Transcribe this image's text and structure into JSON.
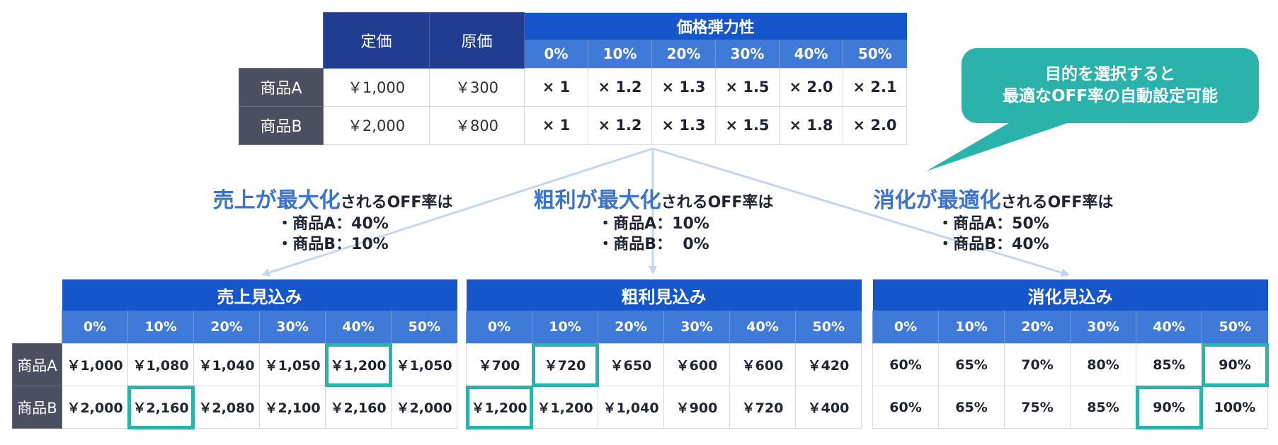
{
  "top_table": {
    "header_list_price": "定価",
    "header_cost": "原価",
    "header_elasticity": "価格弾力性",
    "discounts": [
      "0%",
      "10%",
      "20%",
      "30%",
      "40%",
      "50%"
    ],
    "rows": [
      {
        "label": "商品A",
        "list_price": "￥1,000",
        "cost": "￥300",
        "multipliers": [
          "× 1",
          "× 1.2",
          "× 1.3",
          "× 1.5",
          "× 2.0",
          "× 2.1"
        ]
      },
      {
        "label": "商品B",
        "list_price": "￥2,000",
        "cost": "￥800",
        "multipliers": [
          "× 1",
          "× 1.2",
          "× 1.3",
          "× 1.5",
          "× 1.8",
          "× 2.0"
        ]
      }
    ]
  },
  "callout": {
    "line1": "目的を選択すると",
    "line2": "最適なOFF率の自動設定可能"
  },
  "goals": {
    "sales": {
      "accent": "売上が最大化",
      "suffix": "されるOFF率は",
      "line_a": "・商品A：40%",
      "line_b": "・商品B：10%"
    },
    "gross": {
      "accent": "粗利が最大化",
      "suffix": "されるOFF率は",
      "line_a": "・商品A：10%",
      "line_b": "・商品B：  0%"
    },
    "consume": {
      "accent": "消化が最適化",
      "suffix": "されるOFF率は",
      "line_a": "・商品A：50%",
      "line_b": "・商品B：40%"
    }
  },
  "sales_table": {
    "title": "売上見込み",
    "columns": [
      "0%",
      "10%",
      "20%",
      "30%",
      "40%",
      "50%"
    ],
    "rows": [
      {
        "label": "商品A",
        "values": [
          "￥1,000",
          "￥1,080",
          "￥1,040",
          "￥1,050",
          "￥1,200",
          "￥1,050"
        ],
        "highlight": 4
      },
      {
        "label": "商品B",
        "values": [
          "￥2,000",
          "￥2,160",
          "￥2,080",
          "￥2,100",
          "￥2,160",
          "￥2,000"
        ],
        "highlight": 1
      }
    ]
  },
  "gross_table": {
    "title": "粗利見込み",
    "columns": [
      "0%",
      "10%",
      "20%",
      "30%",
      "40%",
      "50%"
    ],
    "rows": [
      {
        "values": [
          "￥700",
          "￥720",
          "￥650",
          "￥600",
          "￥600",
          "￥420"
        ],
        "highlight": 1
      },
      {
        "values": [
          "￥1,200",
          "￥1,200",
          "￥1,040",
          "￥900",
          "￥720",
          "￥400"
        ],
        "highlight": 0
      }
    ]
  },
  "consume_table": {
    "title": "消化見込み",
    "columns": [
      "0%",
      "10%",
      "20%",
      "30%",
      "40%",
      "50%"
    ],
    "rows": [
      {
        "values": [
          "60%",
          "65%",
          "70%",
          "80%",
          "85%",
          "90%"
        ],
        "highlight": 5
      },
      {
        "values": [
          "60%",
          "65%",
          "75%",
          "85%",
          "90%",
          "100%"
        ],
        "highlight": 4
      }
    ]
  },
  "colors": {
    "header_dark": "#213d92",
    "header_blue": "#1656cc",
    "header_sub": "#3f7ad8",
    "row_label": "#4a5060",
    "highlight": "#2ab3aa",
    "accent_text": "#3a72cf",
    "connector": "#c5d6f0"
  }
}
